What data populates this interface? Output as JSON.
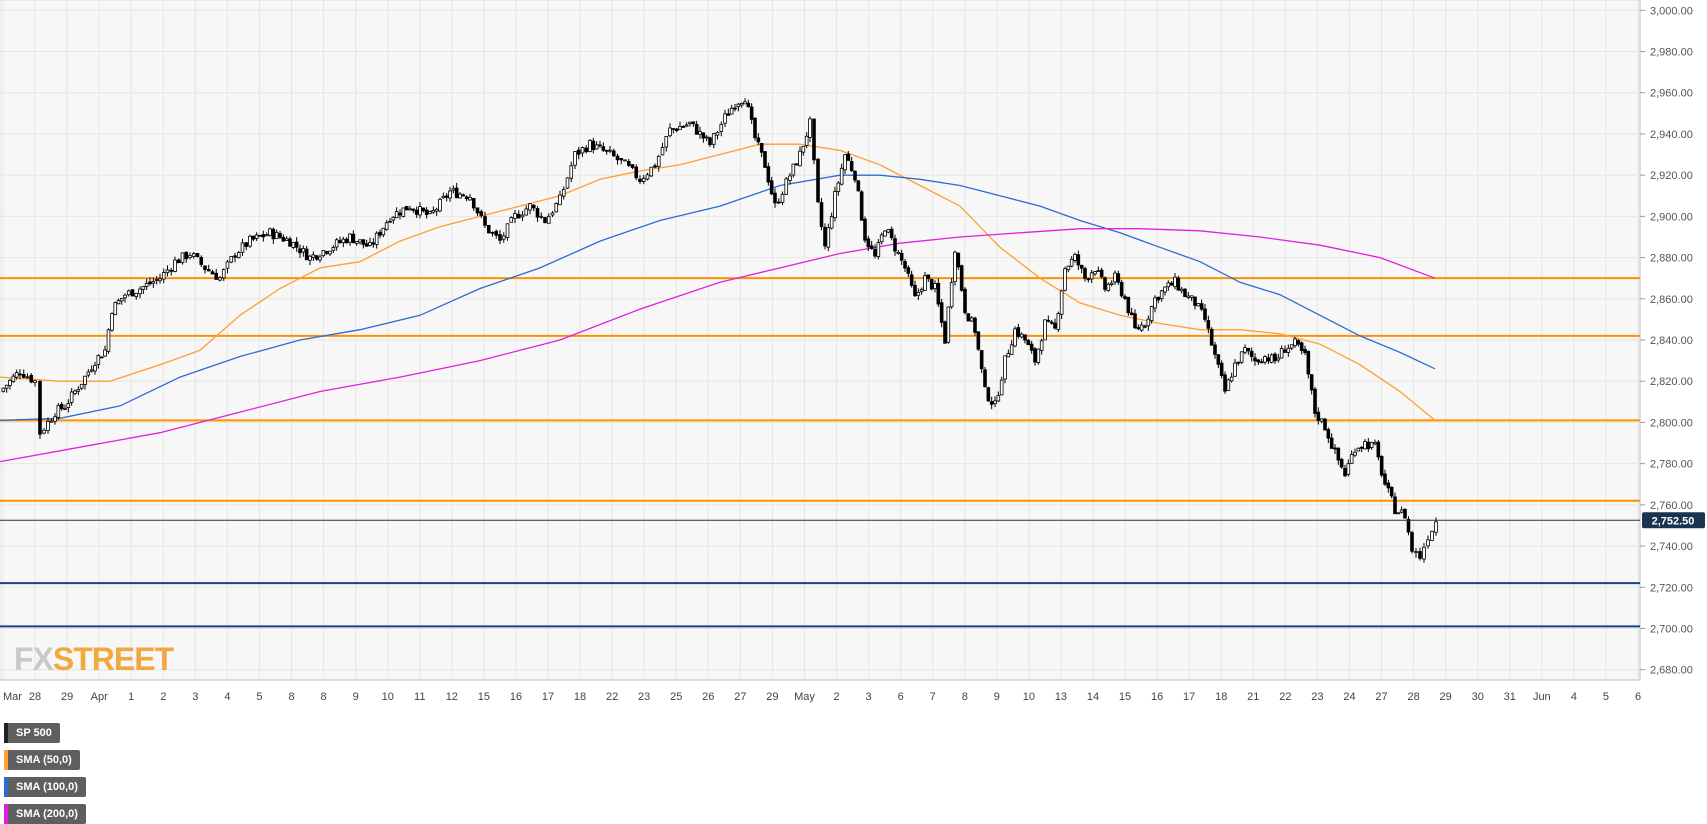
{
  "legend": [
    {
      "label": "SP 500",
      "color": "#222222"
    },
    {
      "label": "SMA (50,0)",
      "color": "#ff9f2e"
    },
    {
      "label": "SMA (100,0)",
      "color": "#2e6bd1"
    },
    {
      "label": "SMA (200,0)",
      "color": "#e020e0"
    }
  ],
  "logo": {
    "part1": "FX",
    "part2": "STREET"
  },
  "last_price_label": "2,752.50",
  "colors": {
    "price_tag": "#1a3350",
    "bull": "#ffffff",
    "bear": "#000000",
    "support": "#1a3f8f",
    "resistance": "#ff9100",
    "sma50": "#ff9f2e",
    "sma100": "#2e6bd1",
    "sma200": "#e020e0"
  },
  "chart_data": {
    "type": "candlestick",
    "title": "",
    "symbol": "SP 500",
    "ylim": [
      2675,
      3005
    ],
    "y_ticks": [
      2680,
      2700,
      2720,
      2740,
      2760,
      2780,
      2800,
      2820,
      2840,
      2860,
      2880,
      2900,
      2920,
      2940,
      2960,
      2980,
      3000
    ],
    "y_tick_labels": [
      "2,680.00",
      "2,700.00",
      "2,720.00",
      "2,740.00",
      "2,760.00",
      "2,780.00",
      "2,800.00",
      "2,820.00",
      "2,840.00",
      "2,860.00",
      "2,880.00",
      "2,900.00",
      "2,920.00",
      "2,940.00",
      "2,960.00",
      "2,980.00",
      "3,000.00"
    ],
    "x_ticks": [
      "Mar",
      "28",
      "29",
      "Apr",
      "1",
      "2",
      "3",
      "4",
      "5",
      "8",
      "8",
      "9",
      "10",
      "11",
      "12",
      "15",
      "16",
      "17",
      "18",
      "22",
      "23",
      "25",
      "26",
      "27",
      "29",
      "May",
      "2",
      "3",
      "6",
      "7",
      "8",
      "9",
      "10",
      "13",
      "14",
      "15",
      "16",
      "17",
      "18",
      "21",
      "22",
      "23",
      "24",
      "27",
      "28",
      "29",
      "30",
      "31",
      "Jun",
      "4",
      "5",
      "6"
    ],
    "grid": true,
    "last_price": 2752.5,
    "horizontal_levels": [
      {
        "value": 2870,
        "kind": "resistance"
      },
      {
        "value": 2842,
        "kind": "resistance"
      },
      {
        "value": 2801,
        "kind": "resistance"
      },
      {
        "value": 2762,
        "kind": "resistance"
      },
      {
        "value": 2722,
        "kind": "support"
      },
      {
        "value": 2701,
        "kind": "support"
      }
    ],
    "price_path": [
      [
        0,
        2815
      ],
      [
        20,
        2825
      ],
      [
        35,
        2820
      ],
      [
        40,
        2795
      ],
      [
        48,
        2800
      ],
      [
        55,
        2805
      ],
      [
        65,
        2808
      ],
      [
        75,
        2815
      ],
      [
        85,
        2822
      ],
      [
        95,
        2830
      ],
      [
        105,
        2835
      ],
      [
        112,
        2855
      ],
      [
        125,
        2862
      ],
      [
        140,
        2865
      ],
      [
        160,
        2870
      ],
      [
        175,
        2878
      ],
      [
        190,
        2882
      ],
      [
        205,
        2875
      ],
      [
        220,
        2870
      ],
      [
        235,
        2882
      ],
      [
        250,
        2888
      ],
      [
        270,
        2892
      ],
      [
        290,
        2888
      ],
      [
        310,
        2880
      ],
      [
        330,
        2885
      ],
      [
        350,
        2890
      ],
      [
        370,
        2885
      ],
      [
        390,
        2900
      ],
      [
        410,
        2905
      ],
      [
        430,
        2900
      ],
      [
        450,
        2912
      ],
      [
        470,
        2910
      ],
      [
        485,
        2895
      ],
      [
        500,
        2888
      ],
      [
        515,
        2900
      ],
      [
        530,
        2905
      ],
      [
        545,
        2898
      ],
      [
        560,
        2908
      ],
      [
        575,
        2930
      ],
      [
        590,
        2935
      ],
      [
        610,
        2930
      ],
      [
        625,
        2925
      ],
      [
        640,
        2918
      ],
      [
        655,
        2925
      ],
      [
        670,
        2942
      ],
      [
        690,
        2945
      ],
      [
        710,
        2935
      ],
      [
        725,
        2948
      ],
      [
        735,
        2955
      ],
      [
        745,
        2958
      ],
      [
        755,
        2938
      ],
      [
        765,
        2925
      ],
      [
        775,
        2905
      ],
      [
        790,
        2920
      ],
      [
        800,
        2930
      ],
      [
        810,
        2945
      ],
      [
        818,
        2905
      ],
      [
        825,
        2885
      ],
      [
        835,
        2910
      ],
      [
        845,
        2930
      ],
      [
        855,
        2920
      ],
      [
        865,
        2890
      ],
      [
        875,
        2880
      ],
      [
        885,
        2895
      ],
      [
        895,
        2885
      ],
      [
        905,
        2875
      ],
      [
        915,
        2860
      ],
      [
        925,
        2870
      ],
      [
        935,
        2865
      ],
      [
        945,
        2840
      ],
      [
        955,
        2885
      ],
      [
        965,
        2855
      ],
      [
        975,
        2845
      ],
      [
        985,
        2815
      ],
      [
        995,
        2808
      ],
      [
        1005,
        2830
      ],
      [
        1015,
        2845
      ],
      [
        1025,
        2840
      ],
      [
        1035,
        2830
      ],
      [
        1045,
        2848
      ],
      [
        1055,
        2845
      ],
      [
        1065,
        2875
      ],
      [
        1075,
        2880
      ],
      [
        1085,
        2870
      ],
      [
        1095,
        2875
      ],
      [
        1105,
        2865
      ],
      [
        1115,
        2870
      ],
      [
        1125,
        2860
      ],
      [
        1135,
        2845
      ],
      [
        1145,
        2848
      ],
      [
        1155,
        2860
      ],
      [
        1165,
        2865
      ],
      [
        1175,
        2868
      ],
      [
        1185,
        2862
      ],
      [
        1195,
        2858
      ],
      [
        1205,
        2850
      ],
      [
        1215,
        2832
      ],
      [
        1225,
        2815
      ],
      [
        1235,
        2828
      ],
      [
        1245,
        2835
      ],
      [
        1255,
        2830
      ],
      [
        1265,
        2832
      ],
      [
        1275,
        2830
      ],
      [
        1285,
        2836
      ],
      [
        1295,
        2838
      ],
      [
        1305,
        2832
      ],
      [
        1315,
        2805
      ],
      [
        1325,
        2798
      ],
      [
        1335,
        2785
      ],
      [
        1345,
        2775
      ],
      [
        1355,
        2788
      ],
      [
        1365,
        2790
      ],
      [
        1375,
        2788
      ],
      [
        1385,
        2770
      ],
      [
        1395,
        2758
      ],
      [
        1405,
        2755
      ],
      [
        1412,
        2738
      ],
      [
        1420,
        2735
      ],
      [
        1428,
        2745
      ],
      [
        1436,
        2752
      ]
    ],
    "series": [
      {
        "name": "SMA (50,0)",
        "points": [
          [
            0,
            2822
          ],
          [
            60,
            2820
          ],
          [
            110,
            2820
          ],
          [
            160,
            2828
          ],
          [
            200,
            2835
          ],
          [
            240,
            2852
          ],
          [
            280,
            2865
          ],
          [
            320,
            2875
          ],
          [
            360,
            2878
          ],
          [
            400,
            2888
          ],
          [
            440,
            2895
          ],
          [
            480,
            2900
          ],
          [
            520,
            2905
          ],
          [
            560,
            2910
          ],
          [
            600,
            2918
          ],
          [
            640,
            2922
          ],
          [
            680,
            2925
          ],
          [
            720,
            2930
          ],
          [
            760,
            2935
          ],
          [
            800,
            2935
          ],
          [
            840,
            2932
          ],
          [
            880,
            2925
          ],
          [
            920,
            2915
          ],
          [
            960,
            2905
          ],
          [
            1000,
            2885
          ],
          [
            1040,
            2870
          ],
          [
            1080,
            2858
          ],
          [
            1120,
            2852
          ],
          [
            1160,
            2848
          ],
          [
            1200,
            2845
          ],
          [
            1240,
            2845
          ],
          [
            1280,
            2843
          ],
          [
            1320,
            2838
          ],
          [
            1360,
            2828
          ],
          [
            1400,
            2815
          ],
          [
            1435,
            2801
          ]
        ]
      },
      {
        "name": "SMA (100,0)",
        "points": [
          [
            0,
            2801
          ],
          [
            60,
            2802
          ],
          [
            120,
            2808
          ],
          [
            180,
            2822
          ],
          [
            240,
            2832
          ],
          [
            300,
            2840
          ],
          [
            360,
            2845
          ],
          [
            420,
            2852
          ],
          [
            480,
            2865
          ],
          [
            540,
            2875
          ],
          [
            600,
            2888
          ],
          [
            660,
            2898
          ],
          [
            720,
            2905
          ],
          [
            780,
            2915
          ],
          [
            840,
            2920
          ],
          [
            880,
            2920
          ],
          [
            920,
            2918
          ],
          [
            960,
            2915
          ],
          [
            1000,
            2910
          ],
          [
            1040,
            2905
          ],
          [
            1080,
            2898
          ],
          [
            1120,
            2892
          ],
          [
            1160,
            2885
          ],
          [
            1200,
            2878
          ],
          [
            1240,
            2868
          ],
          [
            1280,
            2862
          ],
          [
            1320,
            2852
          ],
          [
            1360,
            2842
          ],
          [
            1400,
            2834
          ],
          [
            1435,
            2826
          ]
        ]
      },
      {
        "name": "SMA (200,0)",
        "points": [
          [
            0,
            2781
          ],
          [
            80,
            2788
          ],
          [
            160,
            2795
          ],
          [
            240,
            2805
          ],
          [
            320,
            2815
          ],
          [
            400,
            2822
          ],
          [
            480,
            2830
          ],
          [
            560,
            2840
          ],
          [
            640,
            2855
          ],
          [
            720,
            2868
          ],
          [
            780,
            2875
          ],
          [
            840,
            2882
          ],
          [
            900,
            2887
          ],
          [
            960,
            2890
          ],
          [
            1020,
            2892
          ],
          [
            1080,
            2894
          ],
          [
            1140,
            2894
          ],
          [
            1200,
            2893
          ],
          [
            1260,
            2890
          ],
          [
            1320,
            2886
          ],
          [
            1380,
            2880
          ],
          [
            1435,
            2870
          ]
        ]
      }
    ]
  }
}
